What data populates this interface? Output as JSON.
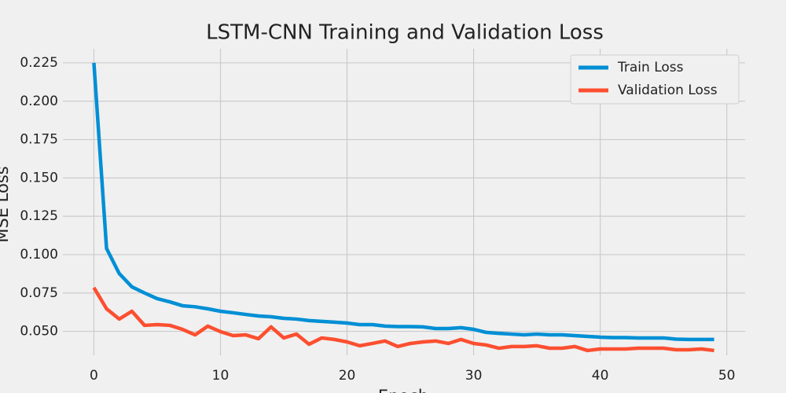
{
  "chart_data": {
    "type": "line",
    "title": "LSTM-CNN Training and Validation Loss",
    "x_label": "Epoch",
    "y_label": "MSE Loss",
    "x": [
      0,
      1,
      2,
      3,
      4,
      5,
      6,
      7,
      8,
      9,
      10,
      11,
      12,
      13,
      14,
      15,
      16,
      17,
      18,
      19,
      20,
      21,
      22,
      23,
      24,
      25,
      26,
      27,
      28,
      29,
      30,
      31,
      32,
      33,
      34,
      35,
      36,
      37,
      38,
      39,
      40,
      41,
      42,
      43,
      44,
      45,
      46,
      47,
      48,
      49
    ],
    "series": [
      {
        "name": "Train Loss",
        "color": "#008fd5",
        "values": [
          0.225,
          0.104,
          0.0877,
          0.079,
          0.075,
          0.0713,
          0.0692,
          0.0667,
          0.066,
          0.0647,
          0.0631,
          0.0621,
          0.061,
          0.06,
          0.0595,
          0.0585,
          0.058,
          0.057,
          0.0565,
          0.056,
          0.0554,
          0.0544,
          0.0544,
          0.0534,
          0.0531,
          0.0531,
          0.0529,
          0.0518,
          0.0518,
          0.0524,
          0.0513,
          0.0493,
          0.0487,
          0.0482,
          0.0477,
          0.0482,
          0.0477,
          0.0477,
          0.0472,
          0.0467,
          0.0462,
          0.0459,
          0.0459,
          0.0457,
          0.0457,
          0.0457,
          0.0449,
          0.0447,
          0.0447,
          0.0447
        ]
      },
      {
        "name": "Validation Loss",
        "color": "#fc4f30",
        "values": [
          0.0785,
          0.0647,
          0.058,
          0.0631,
          0.0539,
          0.0544,
          0.0539,
          0.0513,
          0.0477,
          0.0534,
          0.0498,
          0.0472,
          0.0477,
          0.0452,
          0.0529,
          0.0457,
          0.0482,
          0.0416,
          0.0457,
          0.0447,
          0.0431,
          0.0406,
          0.0421,
          0.0437,
          0.0401,
          0.0421,
          0.0431,
          0.0437,
          0.0421,
          0.0447,
          0.0421,
          0.0411,
          0.039,
          0.0401,
          0.0401,
          0.0406,
          0.039,
          0.039,
          0.0401,
          0.0375,
          0.0385,
          0.0385,
          0.0385,
          0.039,
          0.039,
          0.039,
          0.038,
          0.038,
          0.0385,
          0.0375
        ]
      }
    ],
    "xlim": [
      -2.45,
      51.45
    ],
    "ylim": [
      0.0344,
      0.2342
    ],
    "xticks": [
      0,
      10,
      20,
      30,
      40,
      50
    ],
    "yticks": [
      {
        "value": 0.05,
        "label": "0.050"
      },
      {
        "value": 0.075,
        "label": "0.075"
      },
      {
        "value": 0.1,
        "label": "0.100"
      },
      {
        "value": 0.125,
        "label": "0.125"
      },
      {
        "value": 0.15,
        "label": "0.150"
      },
      {
        "value": 0.175,
        "label": "0.175"
      },
      {
        "value": 0.2,
        "label": "0.200"
      },
      {
        "value": 0.225,
        "label": "0.225"
      }
    ],
    "grid": true,
    "legend": "upper right"
  }
}
